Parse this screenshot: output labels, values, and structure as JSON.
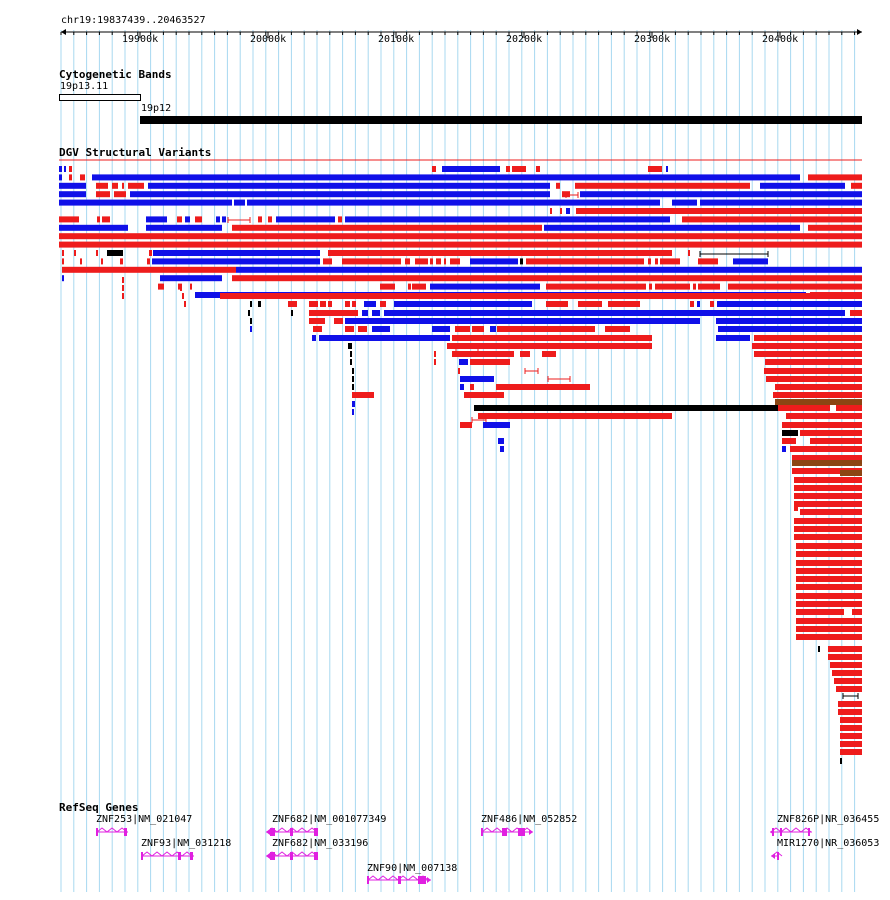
{
  "region": "chr19:19837439..20463527",
  "ruler_ticks": [
    "19900k",
    "20000k",
    "20100k",
    "20200k",
    "20300k",
    "20400k"
  ],
  "tracks": {
    "cytogenetic_bands": {
      "title": "Cytogenetic Bands",
      "bands": [
        "19p13.11",
        "19p12"
      ]
    },
    "dgv": {
      "title": "DGV Structural Variants",
      "colors": {
        "gain": "#ee1c1c",
        "loss": "#1010e8",
        "inversion": "#000000",
        "complex": "#8b4513"
      }
    },
    "refseq": {
      "title": "RefSeq Genes",
      "gene_color": "#e020e0",
      "genes": [
        "ZNF253|NM_021047",
        "ZNF93|NM_031218",
        "ZNF682|NM_001077349",
        "ZNF682|NM_033196",
        "ZNF90|NM_007138",
        "ZNF486|NM_052852",
        "ZNF826P|NR_036455",
        "MIR1270|NR_036053"
      ]
    }
  }
}
